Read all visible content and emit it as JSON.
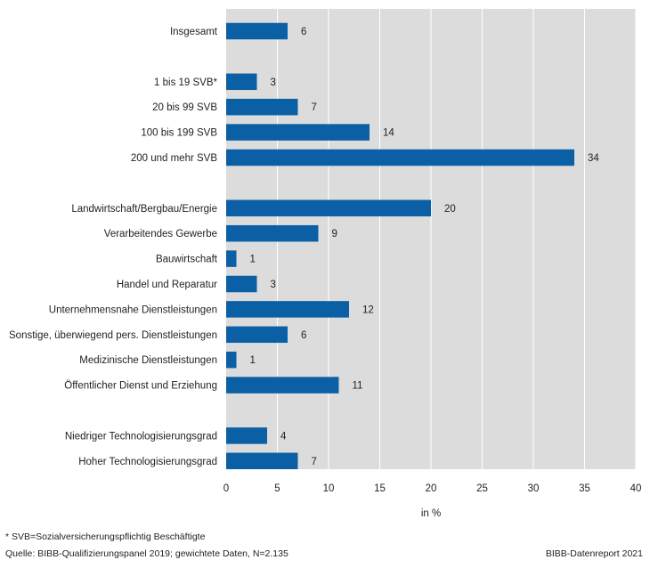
{
  "chart_data": {
    "type": "bar",
    "orientation": "horizontal",
    "categories": [
      "Insgesamt",
      "1 bis 19 SVB*",
      "20 bis 99 SVB",
      "100 bis 199 SVB",
      "200 und mehr SVB",
      "Landwirtschaft/Bergbau/Energie",
      "Verarbeitendes Gewerbe",
      "Bauwirtschaft",
      "Handel und Reparatur",
      "Unternehmensnahe Dienstleistungen",
      "Sonstige, überwiegend pers. Dienstleistungen",
      "Medizinische Dienstleistungen",
      "Öffentlicher Dienst und Erziehung",
      "Niedriger Technologisierungsgrad",
      "Hoher Technologisierungsgrad"
    ],
    "groups": [
      {
        "start": 0,
        "end": 0
      },
      {
        "start": 1,
        "end": 4
      },
      {
        "start": 5,
        "end": 12
      },
      {
        "start": 13,
        "end": 14
      }
    ],
    "values": [
      6,
      3,
      7,
      14,
      34,
      20,
      9,
      1,
      3,
      12,
      6,
      1,
      11,
      4,
      7
    ],
    "xlabel": "in %",
    "xlim": [
      0,
      40
    ],
    "xticks": [
      0,
      5,
      10,
      15,
      20,
      25,
      30,
      35,
      40
    ],
    "grid": true,
    "legend": "none",
    "colors": {
      "bar": "#0a5fa5",
      "plot_background": "#dcdcdc",
      "gridline": "#ffffff"
    }
  },
  "footer": {
    "note": "* SVB=Sozialversicherungspflichtig Beschäftigte",
    "source": "Quelle: BIBB-Qualifizierungspanel 2019;  gewichtete Daten, N=2.135",
    "credit": "BIBB-Datenreport 2021"
  }
}
